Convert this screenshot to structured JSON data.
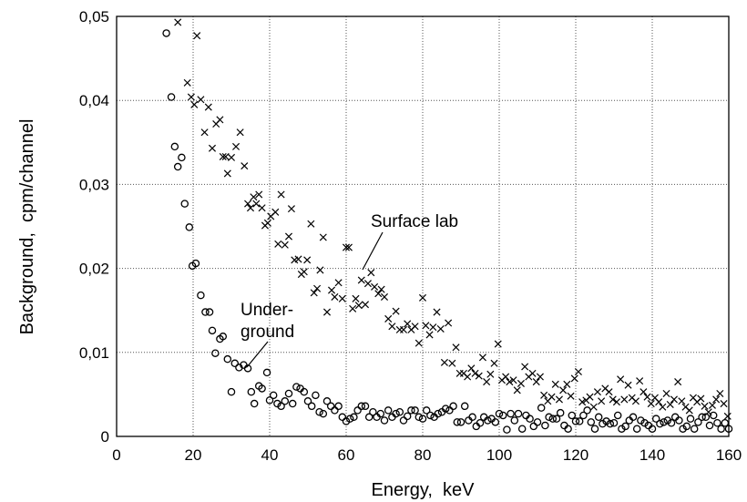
{
  "chart_data": {
    "type": "scatter",
    "xlabel": "Energy,  keV",
    "ylabel": "Background,  cpm/channel",
    "xlim": [
      0,
      160
    ],
    "ylim": [
      0,
      0.05
    ],
    "grid": true,
    "x_ticks": [
      0,
      20,
      40,
      60,
      80,
      100,
      120,
      140,
      160
    ],
    "x_tick_labels": [
      "0",
      "20",
      "40",
      "60",
      "80",
      "100",
      "120",
      "140",
      "160"
    ],
    "y_ticks": [
      0,
      0.01,
      0.02,
      0.03,
      0.04,
      0.05
    ],
    "y_tick_labels": [
      "0",
      "0,01",
      "0,02",
      "0,03",
      "0,04",
      "0,05"
    ],
    "annotations": [
      {
        "lines": [
          "Surface lab"
        ],
        "points_to": [
          66,
          0.0195
        ]
      },
      {
        "lines": [
          "Under-",
          "ground"
        ],
        "points_to": [
          34,
          0.0083
        ]
      }
    ],
    "series": [
      {
        "marker": "circle",
        "points": [
          [
            13,
            0.048
          ],
          [
            14.3,
            0.0404
          ],
          [
            15.2,
            0.0345
          ],
          [
            16,
            0.0321
          ],
          [
            17,
            0.0332
          ],
          [
            17.8,
            0.0277
          ],
          [
            19,
            0.0249
          ],
          [
            19.8,
            0.0203
          ],
          [
            20.7,
            0.0206
          ],
          [
            22,
            0.0168
          ],
          [
            23.2,
            0.0148
          ],
          [
            24.3,
            0.0148
          ],
          [
            25,
            0.0126
          ],
          [
            25.8,
            0.0099
          ],
          [
            27,
            0.0116
          ],
          [
            27.8,
            0.0119
          ],
          [
            29,
            0.0092
          ],
          [
            30,
            0.0053
          ],
          [
            30.9,
            0.0087
          ],
          [
            32,
            0.0082
          ],
          [
            33.2,
            0.0085
          ],
          [
            34.3,
            0.0081
          ],
          [
            35.2,
            0.0053
          ],
          [
            36,
            0.0039
          ],
          [
            37.2,
            0.006
          ],
          [
            38,
            0.0057
          ],
          [
            39.3,
            0.0076
          ],
          [
            40,
            0.0043
          ],
          [
            41,
            0.0049
          ],
          [
            42,
            0.0039
          ],
          [
            43,
            0.0036
          ],
          [
            44,
            0.0042
          ],
          [
            45,
            0.0051
          ],
          [
            46,
            0.0039
          ],
          [
            47,
            0.0059
          ],
          [
            48,
            0.0057
          ],
          [
            49,
            0.0053
          ],
          [
            50,
            0.0042
          ],
          [
            51,
            0.0036
          ],
          [
            52,
            0.0049
          ],
          [
            53,
            0.0029
          ],
          [
            54,
            0.0027
          ],
          [
            55,
            0.0042
          ],
          [
            56,
            0.0036
          ],
          [
            57,
            0.0031
          ],
          [
            58,
            0.0036
          ],
          [
            59,
            0.0023
          ],
          [
            60,
            0.0018
          ],
          [
            61,
            0.0021
          ],
          [
            62,
            0.0023
          ],
          [
            63,
            0.0031
          ],
          [
            64,
            0.0036
          ],
          [
            65,
            0.0036
          ],
          [
            66,
            0.0023
          ],
          [
            67,
            0.0029
          ],
          [
            68,
            0.0023
          ],
          [
            69,
            0.0027
          ],
          [
            70,
            0.0019
          ],
          [
            71,
            0.0031
          ],
          [
            72,
            0.0023
          ],
          [
            73,
            0.0027
          ],
          [
            74,
            0.0029
          ],
          [
            75,
            0.0019
          ],
          [
            76,
            0.0024
          ],
          [
            77,
            0.0031
          ],
          [
            78,
            0.0031
          ],
          [
            79,
            0.0023
          ],
          [
            80,
            0.0021
          ],
          [
            81,
            0.0031
          ],
          [
            82,
            0.0025
          ],
          [
            83,
            0.0023
          ],
          [
            84,
            0.0027
          ],
          [
            85,
            0.0029
          ],
          [
            86,
            0.0033
          ],
          [
            87,
            0.0031
          ],
          [
            88,
            0.0036
          ],
          [
            89,
            0.0017
          ],
          [
            90,
            0.0017
          ],
          [
            91,
            0.0036
          ],
          [
            92,
            0.0019
          ],
          [
            93,
            0.0023
          ],
          [
            94,
            0.0012
          ],
          [
            95,
            0.0016
          ],
          [
            96,
            0.0023
          ],
          [
            97,
            0.0019
          ],
          [
            98,
            0.0021
          ],
          [
            99,
            0.0017
          ],
          [
            100,
            0.0027
          ],
          [
            101,
            0.0025
          ],
          [
            102,
            0.0008
          ],
          [
            103,
            0.0027
          ],
          [
            104,
            0.0019
          ],
          [
            105,
            0.0027
          ],
          [
            106,
            0.0009
          ],
          [
            107,
            0.0025
          ],
          [
            108,
            0.0021
          ],
          [
            109,
            0.0012
          ],
          [
            110,
            0.0017
          ],
          [
            111,
            0.0034
          ],
          [
            112,
            0.0013
          ],
          [
            113,
            0.0023
          ],
          [
            114,
            0.0021
          ],
          [
            115,
            0.0021
          ],
          [
            116,
            0.0028
          ],
          [
            117,
            0.0013
          ],
          [
            118,
            0.0009
          ],
          [
            119,
            0.0025
          ],
          [
            120,
            0.0018
          ],
          [
            121,
            0.0018
          ],
          [
            122,
            0.0025
          ],
          [
            123,
            0.0031
          ],
          [
            124,
            0.0017
          ],
          [
            125,
            0.0009
          ],
          [
            126,
            0.0023
          ],
          [
            127,
            0.0015
          ],
          [
            128,
            0.0018
          ],
          [
            129,
            0.0015
          ],
          [
            130,
            0.0016
          ],
          [
            131,
            0.0025
          ],
          [
            132,
            0.0009
          ],
          [
            133,
            0.0012
          ],
          [
            134,
            0.0019
          ],
          [
            135,
            0.0023
          ],
          [
            136,
            0.0009
          ],
          [
            137,
            0.0019
          ],
          [
            138,
            0.0016
          ],
          [
            139,
            0.0013
          ],
          [
            140,
            0.0009
          ],
          [
            141,
            0.0021
          ],
          [
            142,
            0.0015
          ],
          [
            143,
            0.0017
          ],
          [
            144,
            0.0019
          ],
          [
            145,
            0.0016
          ],
          [
            146,
            0.0023
          ],
          [
            147,
            0.0019
          ],
          [
            148,
            0.0009
          ],
          [
            149,
            0.0012
          ],
          [
            150,
            0.0021
          ],
          [
            151,
            0.0009
          ],
          [
            152,
            0.0017
          ],
          [
            153,
            0.0023
          ],
          [
            154,
            0.0023
          ],
          [
            155,
            0.0013
          ],
          [
            156,
            0.0025
          ],
          [
            157,
            0.0016
          ],
          [
            158,
            0.0009
          ],
          [
            159,
            0.0016
          ],
          [
            160,
            0.0009
          ]
        ]
      },
      {
        "marker": "cross",
        "points": [
          [
            16,
            0.0493
          ],
          [
            18.5,
            0.0421
          ],
          [
            19.5,
            0.0404
          ],
          [
            20.3,
            0.0395
          ],
          [
            21,
            0.0477
          ],
          [
            22,
            0.0401
          ],
          [
            23,
            0.0362
          ],
          [
            24,
            0.0392
          ],
          [
            25,
            0.0343
          ],
          [
            26,
            0.0372
          ],
          [
            27,
            0.0377
          ],
          [
            27.8,
            0.0333
          ],
          [
            28.5,
            0.0333
          ],
          [
            29,
            0.0313
          ],
          [
            30,
            0.0332
          ],
          [
            31.2,
            0.0345
          ],
          [
            32.3,
            0.0362
          ],
          [
            33.4,
            0.0322
          ],
          [
            34.3,
            0.0277
          ],
          [
            35,
            0.0272
          ],
          [
            35.8,
            0.0285
          ],
          [
            36.5,
            0.0277
          ],
          [
            37.2,
            0.0288
          ],
          [
            38,
            0.0272
          ],
          [
            38.8,
            0.0251
          ],
          [
            39.5,
            0.0254
          ],
          [
            40.3,
            0.0262
          ],
          [
            41.5,
            0.0267
          ],
          [
            42.2,
            0.0229
          ],
          [
            43,
            0.0288
          ],
          [
            44,
            0.0228
          ],
          [
            45,
            0.0238
          ],
          [
            45.7,
            0.0271
          ],
          [
            46.5,
            0.021
          ],
          [
            47.5,
            0.0211
          ],
          [
            48.3,
            0.0193
          ],
          [
            49,
            0.0196
          ],
          [
            49.8,
            0.021
          ],
          [
            50.8,
            0.0253
          ],
          [
            51.6,
            0.0171
          ],
          [
            52.4,
            0.0176
          ],
          [
            53.2,
            0.0198
          ],
          [
            54,
            0.0237
          ],
          [
            55,
            0.0148
          ],
          [
            56.2,
            0.0174
          ],
          [
            57,
            0.0166
          ],
          [
            58,
            0.0183
          ],
          [
            59,
            0.0164
          ],
          [
            60,
            0.0225
          ],
          [
            60.7,
            0.0225
          ],
          [
            61.7,
            0.0152
          ],
          [
            62.5,
            0.0164
          ],
          [
            63.3,
            0.0156
          ],
          [
            64,
            0.0186
          ],
          [
            65,
            0.0157
          ],
          [
            65.7,
            0.0182
          ],
          [
            66.5,
            0.0195
          ],
          [
            67.4,
            0.0178
          ],
          [
            68.4,
            0.017
          ],
          [
            69.2,
            0.0175
          ],
          [
            70,
            0.0166
          ],
          [
            71,
            0.014
          ],
          [
            72,
            0.0131
          ],
          [
            73,
            0.0149
          ],
          [
            74,
            0.0127
          ],
          [
            75,
            0.0127
          ],
          [
            76,
            0.0134
          ],
          [
            77,
            0.0127
          ],
          [
            78,
            0.0131
          ],
          [
            79,
            0.0111
          ],
          [
            80,
            0.0165
          ],
          [
            80.8,
            0.0132
          ],
          [
            81.8,
            0.0121
          ],
          [
            82.7,
            0.013
          ],
          [
            83.7,
            0.0148
          ],
          [
            84.7,
            0.0128
          ],
          [
            85.7,
            0.0088
          ],
          [
            86.7,
            0.0135
          ],
          [
            87.7,
            0.0087
          ],
          [
            88.7,
            0.0106
          ],
          [
            89.7,
            0.0075
          ],
          [
            90.7,
            0.0075
          ],
          [
            91.7,
            0.0071
          ],
          [
            92.7,
            0.0081
          ],
          [
            93.7,
            0.0075
          ],
          [
            94.7,
            0.0072
          ],
          [
            95.7,
            0.0094
          ],
          [
            96.7,
            0.0065
          ],
          [
            97.7,
            0.0074
          ],
          [
            98.7,
            0.0087
          ],
          [
            99.7,
            0.011
          ],
          [
            100.7,
            0.0067
          ],
          [
            101.7,
            0.0071
          ],
          [
            102.7,
            0.0065
          ],
          [
            103.7,
            0.0067
          ],
          [
            104.7,
            0.0055
          ],
          [
            105.7,
            0.0063
          ],
          [
            106.7,
            0.0083
          ],
          [
            107.7,
            0.0071
          ],
          [
            108.7,
            0.0075
          ],
          [
            109.7,
            0.0065
          ],
          [
            110.7,
            0.0071
          ],
          [
            111.7,
            0.0049
          ],
          [
            112.7,
            0.0042
          ],
          [
            113.7,
            0.0047
          ],
          [
            114.7,
            0.0062
          ],
          [
            115.7,
            0.0044
          ],
          [
            116.7,
            0.0055
          ],
          [
            117.7,
            0.0062
          ],
          [
            118.7,
            0.0048
          ],
          [
            119.7,
            0.0069
          ],
          [
            120.7,
            0.0077
          ],
          [
            121.7,
            0.0041
          ],
          [
            122.7,
            0.0043
          ],
          [
            123.7,
            0.0047
          ],
          [
            124.7,
            0.0035
          ],
          [
            125.7,
            0.0053
          ],
          [
            126.7,
            0.0042
          ],
          [
            127.7,
            0.0057
          ],
          [
            128.7,
            0.0053
          ],
          [
            129.7,
            0.0044
          ],
          [
            130.7,
            0.0041
          ],
          [
            131.7,
            0.0068
          ],
          [
            132.7,
            0.0044
          ],
          [
            133.7,
            0.0061
          ],
          [
            134.7,
            0.0046
          ],
          [
            135.7,
            0.0042
          ],
          [
            136.7,
            0.0066
          ],
          [
            137.7,
            0.0053
          ],
          [
            138.7,
            0.0047
          ],
          [
            139.7,
            0.0039
          ],
          [
            140.7,
            0.0046
          ],
          [
            141.7,
            0.0041
          ],
          [
            142.7,
            0.0035
          ],
          [
            143.7,
            0.0051
          ],
          [
            144.7,
            0.0038
          ],
          [
            145.7,
            0.0044
          ],
          [
            146.7,
            0.0065
          ],
          [
            147.7,
            0.0042
          ],
          [
            148.7,
            0.0035
          ],
          [
            149.7,
            0.0031
          ],
          [
            150.7,
            0.0046
          ],
          [
            151.7,
            0.0041
          ],
          [
            152.7,
            0.0045
          ],
          [
            153.7,
            0.0036
          ],
          [
            154.7,
            0.0029
          ],
          [
            155.7,
            0.0037
          ],
          [
            156.7,
            0.0044
          ],
          [
            157.7,
            0.0051
          ],
          [
            158.7,
            0.0039
          ],
          [
            159.7,
            0.0024
          ]
        ]
      }
    ]
  }
}
